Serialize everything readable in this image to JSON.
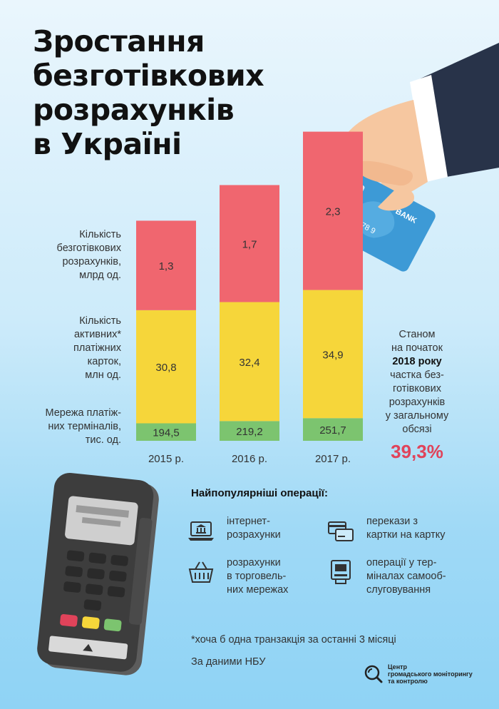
{
  "title_lines": [
    "Зростання",
    "безготівкових",
    "розрахунків",
    "в Україні"
  ],
  "row_labels": {
    "transactions": [
      "Кількість",
      "безготівкових",
      "розрахунків,",
      "млрд од."
    ],
    "cards": [
      "Кількість",
      "активних*",
      "платіжних",
      "карток,",
      "млн од."
    ],
    "terminals": [
      "Мережа платіж-",
      "них терміналів,",
      "тис. од."
    ]
  },
  "colors": {
    "transactions": "#f0666f",
    "cards": "#f6d63a",
    "terminals": "#7cc46f",
    "accent": "#e0435a"
  },
  "chart_data": {
    "type": "bar",
    "stacked": true,
    "categories": [
      "2015 р.",
      "2016 р.",
      "2017 р."
    ],
    "series": [
      {
        "name": "Мережа платіжних терміналів, тис. од.",
        "key": "terminals",
        "values": [
          194.5,
          219.2,
          251.7
        ],
        "labels": [
          "194,5",
          "219,2",
          "251,7"
        ]
      },
      {
        "name": "Кількість активних платіжних карток, млн од.",
        "key": "cards",
        "values": [
          30.8,
          32.4,
          34.9
        ],
        "labels": [
          "30,8",
          "32,4",
          "34,9"
        ]
      },
      {
        "name": "Кількість безготівкових розрахунків, млрд од.",
        "key": "transactions",
        "values": [
          1.3,
          1.7,
          2.3
        ],
        "labels": [
          "1,3",
          "1,7",
          "2,3"
        ]
      }
    ]
  },
  "side_note": {
    "lines": [
      "Станом",
      "на початок"
    ],
    "bold_line": "2018 року",
    "lines2": [
      "частка без-",
      "готівкових",
      "розрахунків",
      "у загальному",
      "обсязі"
    ],
    "value": "39,3%"
  },
  "ops_title": "Найпопулярніші операції:",
  "operations": [
    {
      "icon": "laptop-bank-icon",
      "lines": [
        "інтернет-",
        "розрахунки"
      ]
    },
    {
      "icon": "cards-transfer-icon",
      "lines": [
        "перекази з",
        "картки на картку"
      ]
    },
    {
      "icon": "shopping-basket-icon",
      "lines": [
        "розрахунки",
        "в торговель-",
        "них мережах"
      ]
    },
    {
      "icon": "atm-icon",
      "lines": [
        "операції у тер-",
        "міналах самооб-",
        "слуговування"
      ]
    }
  ],
  "card_text": {
    "bank": "BANK",
    "number": "678 9"
  },
  "footnote": "*хоча б одна транзакція за останні 3 місяці",
  "source": "За даними НБУ",
  "org_lines": [
    "Центр",
    "громадського моніторингу",
    "та контролю"
  ]
}
